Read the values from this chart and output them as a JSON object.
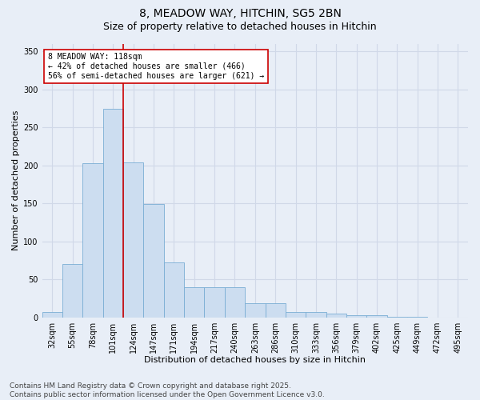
{
  "title_line1": "8, MEADOW WAY, HITCHIN, SG5 2BN",
  "title_line2": "Size of property relative to detached houses in Hitchin",
  "xlabel": "Distribution of detached houses by size in Hitchin",
  "ylabel": "Number of detached properties",
  "bar_color": "#ccddf0",
  "bar_edge_color": "#7aadd4",
  "categories": [
    "32sqm",
    "55sqm",
    "78sqm",
    "101sqm",
    "124sqm",
    "147sqm",
    "171sqm",
    "194sqm",
    "217sqm",
    "240sqm",
    "263sqm",
    "286sqm",
    "310sqm",
    "333sqm",
    "356sqm",
    "379sqm",
    "402sqm",
    "425sqm",
    "449sqm",
    "472sqm",
    "495sqm"
  ],
  "values": [
    7,
    70,
    203,
    275,
    204,
    149,
    72,
    40,
    40,
    40,
    19,
    19,
    7,
    7,
    5,
    3,
    3,
    1,
    1,
    0,
    0
  ],
  "vline_color": "#cc0000",
  "vline_x_index": 3.5,
  "annotation_text": "8 MEADOW WAY: 118sqm\n← 42% of detached houses are smaller (466)\n56% of semi-detached houses are larger (621) →",
  "annotation_box_color": "#ffffff",
  "annotation_box_edge_color": "#cc0000",
  "ylim": [
    0,
    360
  ],
  "yticks": [
    0,
    50,
    100,
    150,
    200,
    250,
    300,
    350
  ],
  "background_color": "#e8eef7",
  "grid_color": "#d0d8e8",
  "footer_text": "Contains HM Land Registry data © Crown copyright and database right 2025.\nContains public sector information licensed under the Open Government Licence v3.0.",
  "title_fontsize": 10,
  "subtitle_fontsize": 9,
  "axis_label_fontsize": 8,
  "tick_fontsize": 7,
  "annotation_fontsize": 7,
  "footer_fontsize": 6.5
}
